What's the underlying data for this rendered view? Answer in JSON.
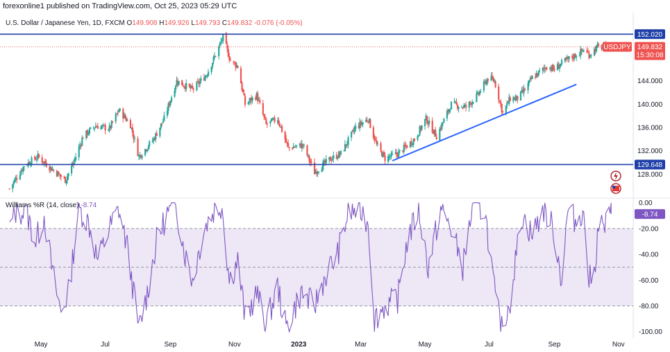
{
  "header": {
    "publisher_line": "forexonline1 published on TradingView.com, Oct 25, 2023 05:29 UTC"
  },
  "legend": {
    "symbol": "U.S. Dollar / Japanese Yen, 1D, FXCM",
    "open_label": "O",
    "open": "149.908",
    "high_label": "H",
    "high": "149.926",
    "low_label": "L",
    "low": "149.793",
    "close_label": "C",
    "close": "149.832",
    "change": "-0.076 (-0.05%)"
  },
  "indicator": {
    "name": "Williams %R (14, close)",
    "value": "-8.74"
  },
  "colors": {
    "up": "#26a69a",
    "down": "#ef5350",
    "level_line": "#1e3fa8",
    "trend_line": "#2962ff",
    "wr_line": "#7e57c2",
    "wr_band": "#ede7f6",
    "axis_text": "#131722"
  },
  "chart_data": [
    {
      "type": "candlestick",
      "title": "U.S. Dollar / Japanese Yen, 1D, FXCM",
      "ylim": [
        124.0,
        155.5
      ],
      "y_ticks": [
        "128.000",
        "132.000",
        "136.000",
        "140.000",
        "144.000"
      ],
      "x_ticks": [
        "May",
        "Jul",
        "Sep",
        "Nov",
        "2023",
        "Mar",
        "May",
        "Jul",
        "Sep",
        "Nov"
      ],
      "price_labels": [
        {
          "text": "152.020",
          "value": 152.02,
          "kind": "level"
        },
        {
          "text": "129.648",
          "value": 129.648,
          "kind": "level"
        },
        {
          "text": "USDJPY",
          "value": 149.832,
          "kind": "symbol"
        },
        {
          "text": "149.832",
          "value": 149.832,
          "kind": "last"
        },
        {
          "text": "15:30:08",
          "value": 149.832,
          "kind": "countdown"
        }
      ],
      "horizontal_levels": [
        152.02,
        129.648
      ],
      "trend_line": [
        {
          "x": "2023-03-31",
          "y": 130.3
        },
        {
          "x": "2023-09-22",
          "y": 143.4
        }
      ],
      "close_path": [
        {
          "x": "2022-04-01",
          "y": 125.5
        },
        {
          "x": "2022-04-15",
          "y": 129.5
        },
        {
          "x": "2022-04-28",
          "y": 131.0
        },
        {
          "x": "2022-05-12",
          "y": 128.8
        },
        {
          "x": "2022-05-24",
          "y": 127.0
        },
        {
          "x": "2022-06-01",
          "y": 130.0
        },
        {
          "x": "2022-06-10",
          "y": 134.5
        },
        {
          "x": "2022-06-22",
          "y": 136.3
        },
        {
          "x": "2022-07-05",
          "y": 135.8
        },
        {
          "x": "2022-07-14",
          "y": 139.0
        },
        {
          "x": "2022-07-25",
          "y": 136.5
        },
        {
          "x": "2022-08-02",
          "y": 131.0
        },
        {
          "x": "2022-08-16",
          "y": 134.0
        },
        {
          "x": "2022-08-26",
          "y": 137.5
        },
        {
          "x": "2022-09-07",
          "y": 144.0
        },
        {
          "x": "2022-09-22",
          "y": 142.5
        },
        {
          "x": "2022-10-05",
          "y": 145.0
        },
        {
          "x": "2022-10-14",
          "y": 148.5
        },
        {
          "x": "2022-10-21",
          "y": 151.5
        },
        {
          "x": "2022-10-28",
          "y": 147.5
        },
        {
          "x": "2022-11-04",
          "y": 146.5
        },
        {
          "x": "2022-11-11",
          "y": 140.0
        },
        {
          "x": "2022-11-22",
          "y": 141.5
        },
        {
          "x": "2022-12-01",
          "y": 136.5
        },
        {
          "x": "2022-12-12",
          "y": 137.5
        },
        {
          "x": "2022-12-22",
          "y": 132.5
        },
        {
          "x": "2023-01-05",
          "y": 133.0
        },
        {
          "x": "2023-01-16",
          "y": 128.3
        },
        {
          "x": "2023-01-30",
          "y": 130.5
        },
        {
          "x": "2023-02-10",
          "y": 131.5
        },
        {
          "x": "2023-02-24",
          "y": 136.0
        },
        {
          "x": "2023-03-08",
          "y": 137.5
        },
        {
          "x": "2023-03-16",
          "y": 133.0
        },
        {
          "x": "2023-03-24",
          "y": 130.7
        },
        {
          "x": "2023-04-05",
          "y": 131.5
        },
        {
          "x": "2023-04-21",
          "y": 134.0
        },
        {
          "x": "2023-05-02",
          "y": 137.5
        },
        {
          "x": "2023-05-12",
          "y": 134.5
        },
        {
          "x": "2023-05-26",
          "y": 140.0
        },
        {
          "x": "2023-06-09",
          "y": 139.5
        },
        {
          "x": "2023-06-20",
          "y": 141.5
        },
        {
          "x": "2023-06-30",
          "y": 144.5
        },
        {
          "x": "2023-07-06",
          "y": 144.0
        },
        {
          "x": "2023-07-14",
          "y": 138.5
        },
        {
          "x": "2023-07-21",
          "y": 141.0
        },
        {
          "x": "2023-07-28",
          "y": 141.0
        },
        {
          "x": "2023-08-04",
          "y": 142.5
        },
        {
          "x": "2023-08-11",
          "y": 144.5
        },
        {
          "x": "2023-08-18",
          "y": 145.5
        },
        {
          "x": "2023-08-25",
          "y": 146.5
        },
        {
          "x": "2023-09-01",
          "y": 146.0
        },
        {
          "x": "2023-09-08",
          "y": 147.0
        },
        {
          "x": "2023-09-15",
          "y": 147.8
        },
        {
          "x": "2023-09-22",
          "y": 148.5
        },
        {
          "x": "2023-09-29",
          "y": 149.3
        },
        {
          "x": "2023-10-04",
          "y": 148.5
        },
        {
          "x": "2023-10-12",
          "y": 149.8
        },
        {
          "x": "2023-10-20",
          "y": 149.8
        },
        {
          "x": "2023-10-25",
          "y": 149.832
        }
      ]
    },
    {
      "type": "line",
      "title": "Williams %R (14, close)",
      "ylim": [
        -105,
        3
      ],
      "y_ticks": [
        "0.00",
        "-20.00",
        "-40.00",
        "-60.00",
        "-80.00",
        "-100.00"
      ],
      "reference_levels": [
        -20,
        -50,
        -80
      ],
      "last_value_label": "-8.74",
      "series": [
        {
          "values": [
            {
              "x": "2022-04-01",
              "y": -20
            },
            {
              "x": "2022-04-08",
              "y": -5
            },
            {
              "x": "2022-04-18",
              "y": -10
            },
            {
              "x": "2022-04-26",
              "y": -30
            },
            {
              "x": "2022-05-04",
              "y": -10
            },
            {
              "x": "2022-05-12",
              "y": -55
            },
            {
              "x": "2022-05-20",
              "y": -85
            },
            {
              "x": "2022-05-27",
              "y": -70
            },
            {
              "x": "2022-06-06",
              "y": -5
            },
            {
              "x": "2022-06-15",
              "y": -15
            },
            {
              "x": "2022-06-24",
              "y": -45
            },
            {
              "x": "2022-07-05",
              "y": -20
            },
            {
              "x": "2022-07-14",
              "y": -5
            },
            {
              "x": "2022-07-22",
              "y": -35
            },
            {
              "x": "2022-08-02",
              "y": -98
            },
            {
              "x": "2022-08-10",
              "y": -70
            },
            {
              "x": "2022-08-19",
              "y": -30
            },
            {
              "x": "2022-08-29",
              "y": -8
            },
            {
              "x": "2022-09-07",
              "y": -5
            },
            {
              "x": "2022-09-15",
              "y": -40
            },
            {
              "x": "2022-09-22",
              "y": -60
            },
            {
              "x": "2022-10-03",
              "y": -20
            },
            {
              "x": "2022-10-13",
              "y": -5
            },
            {
              "x": "2022-10-20",
              "y": -2
            },
            {
              "x": "2022-10-27",
              "y": -60
            },
            {
              "x": "2022-11-04",
              "y": -45
            },
            {
              "x": "2022-11-11",
              "y": -90
            },
            {
              "x": "2022-11-22",
              "y": -70
            },
            {
              "x": "2022-12-01",
              "y": -95
            },
            {
              "x": "2022-12-12",
              "y": -65
            },
            {
              "x": "2022-12-20",
              "y": -98
            },
            {
              "x": "2023-01-03",
              "y": -70
            },
            {
              "x": "2023-01-16",
              "y": -80
            },
            {
              "x": "2023-01-27",
              "y": -55
            },
            {
              "x": "2023-02-07",
              "y": -40
            },
            {
              "x": "2023-02-17",
              "y": -8
            },
            {
              "x": "2023-02-28",
              "y": -5
            },
            {
              "x": "2023-03-08",
              "y": -15
            },
            {
              "x": "2023-03-14",
              "y": -90
            },
            {
              "x": "2023-03-24",
              "y": -80
            },
            {
              "x": "2023-04-05",
              "y": -75
            },
            {
              "x": "2023-04-14",
              "y": -30
            },
            {
              "x": "2023-04-25",
              "y": -5
            },
            {
              "x": "2023-05-04",
              "y": -50
            },
            {
              "x": "2023-05-16",
              "y": -5
            },
            {
              "x": "2023-05-26",
              "y": -20
            },
            {
              "x": "2023-06-06",
              "y": -50
            },
            {
              "x": "2023-06-15",
              "y": -5
            },
            {
              "x": "2023-06-27",
              "y": -5
            },
            {
              "x": "2023-07-07",
              "y": -75
            },
            {
              "x": "2023-07-13",
              "y": -98
            },
            {
              "x": "2023-07-21",
              "y": -75
            },
            {
              "x": "2023-08-01",
              "y": -10
            },
            {
              "x": "2023-08-11",
              "y": -25
            },
            {
              "x": "2023-08-22",
              "y": -5
            },
            {
              "x": "2023-08-31",
              "y": -20
            },
            {
              "x": "2023-09-08",
              "y": -60
            },
            {
              "x": "2023-09-14",
              "y": -5
            },
            {
              "x": "2023-09-22",
              "y": -15
            },
            {
              "x": "2023-09-28",
              "y": -5
            },
            {
              "x": "2023-10-04",
              "y": -60
            },
            {
              "x": "2023-10-09",
              "y": -55
            },
            {
              "x": "2023-10-13",
              "y": -15
            },
            {
              "x": "2023-10-18",
              "y": -20
            },
            {
              "x": "2023-10-25",
              "y": -8.74
            }
          ]
        }
      ]
    }
  ]
}
